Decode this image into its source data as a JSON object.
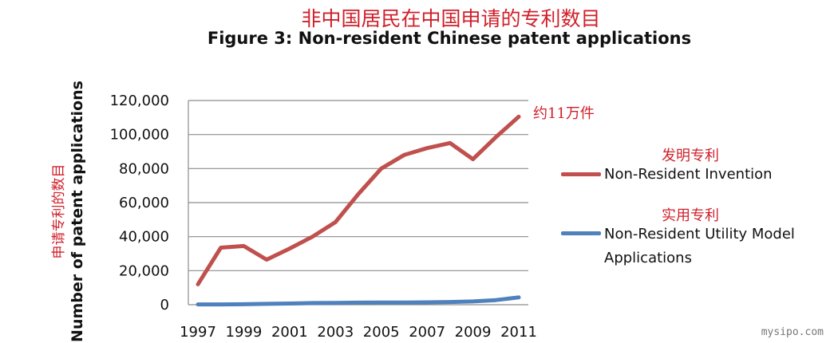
{
  "title_cn": "非中国居民在中国申请的专利数目",
  "title_en": "Figure 3: Non-resident Chinese patent applications",
  "annotation": "约11万件",
  "watermark": "mysipo.com",
  "legend": [
    {
      "label_cn": "发明专利",
      "label": "Non-Resident Invention",
      "color": "#c0504d"
    },
    {
      "label_cn": "实用专利",
      "label": "Non-Resident Utility Model Applications",
      "color": "#4f81bd"
    }
  ],
  "chart_data": {
    "type": "line",
    "title": "Figure 3: Non-resident Chinese patent applications",
    "ylabel": "Number of patent applications",
    "ylabel_cn": "申请专利的数目",
    "xlabel": "",
    "x": [
      1997,
      1998,
      1999,
      2000,
      2001,
      2002,
      2003,
      2004,
      2005,
      2006,
      2007,
      2008,
      2009,
      2010,
      2011
    ],
    "x_tick_labels": [
      "1997",
      "1999",
      "2001",
      "2003",
      "2005",
      "2007",
      "2009",
      "2011"
    ],
    "y_tick_labels": [
      "0",
      "20,000",
      "40,000",
      "60,000",
      "80,000",
      "100,000",
      "120,000"
    ],
    "ylim": [
      0,
      120000
    ],
    "grid": true,
    "legend_position": "right",
    "series": [
      {
        "name": "Non-Resident Invention",
        "color": "#c0504d",
        "values": [
          12000,
          33500,
          34500,
          26500,
          33000,
          40000,
          48500,
          65000,
          80000,
          88000,
          92000,
          95000,
          85500,
          98500,
          110500
        ]
      },
      {
        "name": "Non-Resident Utility Model Applications",
        "color": "#4f81bd",
        "values": [
          200,
          200,
          300,
          500,
          700,
          1000,
          1100,
          1200,
          1300,
          1300,
          1400,
          1600,
          1900,
          2700,
          4300
        ]
      }
    ]
  }
}
